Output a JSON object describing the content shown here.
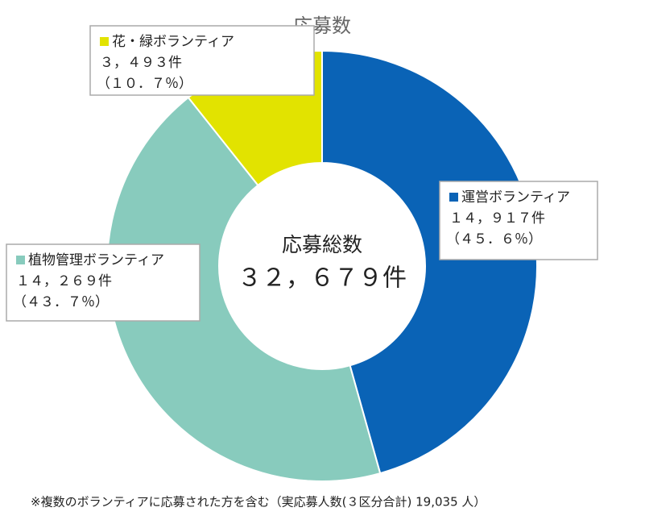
{
  "chart_data": {
    "type": "donut",
    "title": "応募数",
    "categories": [
      "運営ボランティア",
      "植物管理ボランティア",
      "花・緑ボランティア"
    ],
    "values": [
      14917,
      14269,
      3493
    ],
    "value_labels": [
      "１４，９１７件",
      "１４，２６９件",
      "３，４９３件"
    ],
    "percentage_labels": [
      "（４５．６％）",
      "（４３．７％）",
      "（１０．７％）"
    ],
    "colors": [
      "#0a63b6",
      "#88cbbd",
      "#e2e300"
    ],
    "center_title": "応募総数",
    "total": 32679,
    "total_label": "３２，６７９件",
    "footnote": "※複数のボランティアに応募された方を含む（実応募人数(３区分合計) 19,035 人）"
  }
}
